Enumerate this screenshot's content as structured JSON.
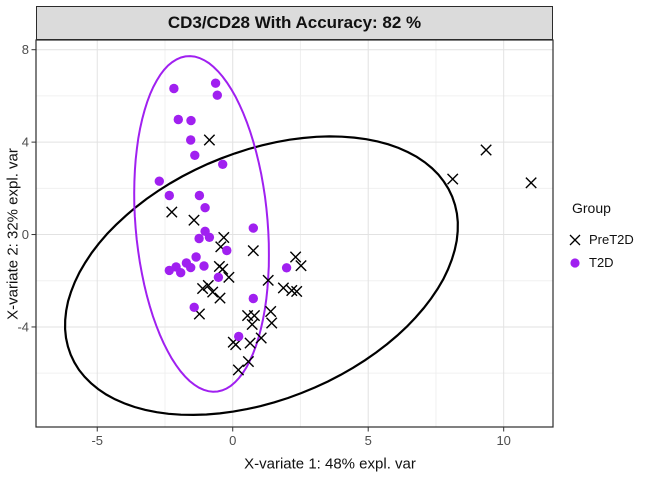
{
  "title": "CD3/CD28 With Accuracy: 82 %",
  "colors": {
    "t2d": "#A020F0",
    "pret2d": "#000000",
    "strip_bg": "#DBDBDB",
    "grid_major": "#E2E2E2",
    "grid_minor": "#F0F0F0",
    "tick_label": "#4D4D4D",
    "panel_border": "#2B2B2B"
  },
  "legend": {
    "title": "Group",
    "items": [
      {
        "label": "PreT2D",
        "marker": "x"
      },
      {
        "label": "T2D",
        "marker": "circle"
      }
    ]
  },
  "chart_data": {
    "type": "scatter",
    "title": "CD3/CD28 With Accuracy: 82 %",
    "xlabel": "X-variate 1: 48% expl. var",
    "ylabel": "X-variate 2: 32% expl. var",
    "xlim": [
      -7.26,
      11.82
    ],
    "ylim": [
      -8.33,
      8.42
    ],
    "x_ticks": [
      -5,
      0,
      5,
      10
    ],
    "y_ticks": [
      -4,
      0,
      4,
      8
    ],
    "x_minor_ticks": [
      -2.5,
      2.5,
      7.5
    ],
    "y_minor_ticks": [
      -6,
      -2,
      2,
      6
    ],
    "grid": true,
    "legend_position": "right",
    "series": [
      {
        "name": "PreT2D",
        "marker": "x",
        "color": "#000000",
        "points": [
          [
            -0.86,
            4.09
          ],
          [
            -2.25,
            0.97
          ],
          [
            -1.43,
            0.62
          ],
          [
            -0.33,
            -0.13
          ],
          [
            -0.44,
            -0.53
          ],
          [
            0.76,
            -0.7
          ],
          [
            -0.49,
            -1.38
          ],
          [
            -0.37,
            -1.5
          ],
          [
            -0.14,
            -1.85
          ],
          [
            -0.9,
            -2.2
          ],
          [
            1.31,
            -1.98
          ],
          [
            2.32,
            -0.97
          ],
          [
            2.52,
            -1.35
          ],
          [
            -1.11,
            -2.34
          ],
          [
            -0.74,
            -2.49
          ],
          [
            -0.47,
            -2.75
          ],
          [
            -1.23,
            -3.44
          ],
          [
            1.87,
            -2.31
          ],
          [
            2.18,
            -2.42
          ],
          [
            2.36,
            -2.46
          ],
          [
            0.55,
            -3.51
          ],
          [
            0.8,
            -3.51
          ],
          [
            1.4,
            -3.33
          ],
          [
            1.44,
            -3.83
          ],
          [
            0.72,
            -3.89
          ],
          [
            0.02,
            -4.66
          ],
          [
            0.11,
            -4.77
          ],
          [
            0.64,
            -4.7
          ],
          [
            1.05,
            -4.48
          ],
          [
            0.58,
            -5.5
          ],
          [
            0.21,
            -5.86
          ],
          [
            8.12,
            2.4
          ],
          [
            9.35,
            3.66
          ],
          [
            11.01,
            2.24
          ]
        ]
      },
      {
        "name": "T2D",
        "marker": "circle",
        "color": "#A020F0",
        "points": [
          [
            -2.17,
            6.32
          ],
          [
            -0.63,
            6.55
          ],
          [
            -0.57,
            6.03
          ],
          [
            -2.01,
            4.98
          ],
          [
            -1.54,
            4.93
          ],
          [
            -1.55,
            4.09
          ],
          [
            -1.4,
            3.43
          ],
          [
            -0.37,
            3.04
          ],
          [
            -2.71,
            2.31
          ],
          [
            -2.34,
            1.69
          ],
          [
            -1.23,
            1.69
          ],
          [
            -1.02,
            1.16
          ],
          [
            0.76,
            0.28
          ],
          [
            -1.02,
            0.14
          ],
          [
            -0.86,
            -0.12
          ],
          [
            -1.24,
            -0.17
          ],
          [
            -0.22,
            -0.69
          ],
          [
            -2.34,
            -1.55
          ],
          [
            -2.09,
            -1.4
          ],
          [
            -1.92,
            -1.65
          ],
          [
            -1.71,
            -1.23
          ],
          [
            -1.55,
            -1.43
          ],
          [
            -1.35,
            -0.97
          ],
          [
            -1.06,
            -1.36
          ],
          [
            -0.53,
            -1.85
          ],
          [
            1.99,
            -1.44
          ],
          [
            -1.42,
            -3.15
          ],
          [
            0.76,
            -2.77
          ],
          [
            0.22,
            -4.41
          ]
        ]
      }
    ],
    "ellipses": [
      {
        "group": "PreT2D",
        "color": "#000000",
        "cx": 1.06,
        "cy": -1.78,
        "rx": 7.87,
        "ry": 5.19,
        "rotate_deg": 31.2,
        "stroke_width": 2.2
      },
      {
        "group": "T2D",
        "color": "#A020F0",
        "cx": -1.15,
        "cy": 0.46,
        "rx": 2.44,
        "ry": 7.28,
        "rotate_deg": 4.0,
        "stroke_width": 2.0
      }
    ]
  }
}
